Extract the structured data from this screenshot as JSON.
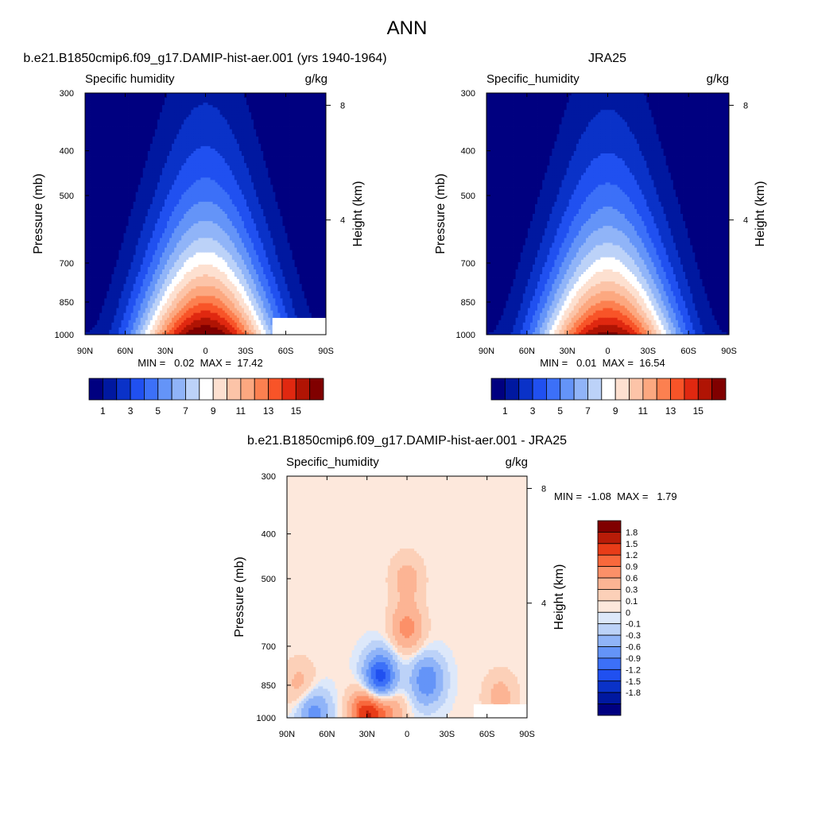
{
  "figure": {
    "title": "ANN"
  },
  "colors": {
    "moisture_scale": [
      "#000080",
      "#0018a0",
      "#0a32c8",
      "#2050f0",
      "#3c70f8",
      "#6494f8",
      "#90b4f8",
      "#bcd2f8",
      "#ffffff",
      "#fde0d0",
      "#fcc4a8",
      "#fca880",
      "#fc8050",
      "#f85428",
      "#e02810",
      "#b01404",
      "#800000"
    ],
    "difference_scale": [
      "#000080",
      "#0018a0",
      "#0a32c8",
      "#2050f0",
      "#3c70f8",
      "#6494f8",
      "#90b4f8",
      "#bcd2f8",
      "#dde8fa",
      "#fde8dc",
      "#fcd0b8",
      "#fcb494",
      "#fc9068",
      "#f8683c",
      "#e83c18",
      "#b81c08",
      "#800000"
    ],
    "missing": "#ffffff"
  },
  "chart_data": [
    {
      "type": "heatmap",
      "title": "b.e21.B1850cmip6.f09_g17.DAMIP-hist-aer.001 (yrs 1940-1964)",
      "left_label": "Specific humidity",
      "right_label": "g/kg",
      "ylabel": "Pressure (mb)",
      "y2label": "Height (km)",
      "x_ticks": [
        "90N",
        "60N",
        "30N",
        "0",
        "30S",
        "60S",
        "90S"
      ],
      "x_tick_values": [
        90,
        60,
        30,
        0,
        -30,
        -60,
        -90
      ],
      "xlim": [
        90,
        -90
      ],
      "y_ticks": [
        "300",
        "400",
        "500",
        "700",
        "850",
        "1000"
      ],
      "y_tick_values": [
        300,
        400,
        500,
        700,
        850,
        1000
      ],
      "ylim": [
        1000,
        300
      ],
      "yscale": "log",
      "y2_ticks": [
        "8",
        "4"
      ],
      "y2_tick_values": [
        8,
        4
      ],
      "peak_value": 17.42,
      "peak_lat": 0,
      "min_value": 0.02,
      "stats": "MIN =   0.02  MAX =  17.42",
      "colorbar_levels": [
        1,
        2,
        3,
        4,
        5,
        6,
        7,
        8,
        9,
        10,
        11,
        12,
        13,
        14,
        15,
        16
      ],
      "colorbar_labels": [
        "1",
        "3",
        "5",
        "7",
        "9",
        "11",
        "13",
        "15"
      ],
      "missing_region": "surface below ~920 mb south of 50S"
    },
    {
      "type": "heatmap",
      "title": "JRA25",
      "left_label": "Specific_humidity",
      "right_label": "g/kg",
      "ylabel": "Pressure (mb)",
      "y2label": "Height (km)",
      "x_ticks": [
        "90N",
        "60N",
        "30N",
        "0",
        "30S",
        "60S",
        "90S"
      ],
      "x_tick_values": [
        90,
        60,
        30,
        0,
        -30,
        -60,
        -90
      ],
      "xlim": [
        90,
        -90
      ],
      "y_ticks": [
        "300",
        "400",
        "500",
        "700",
        "850",
        "1000"
      ],
      "y_tick_values": [
        300,
        400,
        500,
        700,
        850,
        1000
      ],
      "ylim": [
        1000,
        300
      ],
      "yscale": "log",
      "y2_ticks": [
        "8",
        "4"
      ],
      "y2_tick_values": [
        8,
        4
      ],
      "peak_value": 16.54,
      "peak_lat": 0,
      "min_value": 0.01,
      "stats": "MIN =   0.01  MAX =  16.54",
      "colorbar_levels": [
        1,
        2,
        3,
        4,
        5,
        6,
        7,
        8,
        9,
        10,
        11,
        12,
        13,
        14,
        15,
        16
      ],
      "colorbar_labels": [
        "1",
        "3",
        "5",
        "7",
        "9",
        "11",
        "13",
        "15"
      ]
    },
    {
      "type": "heatmap",
      "title": "b.e21.B1850cmip6.f09_g17.DAMIP-hist-aer.001 - JRA25",
      "left_label": "Specific_humidity",
      "right_label": "g/kg",
      "ylabel": "Pressure (mb)",
      "y2label": "Height (km)",
      "x_ticks": [
        "90N",
        "60N",
        "30N",
        "0",
        "30S",
        "60S",
        "90S"
      ],
      "x_tick_values": [
        90,
        60,
        30,
        0,
        -30,
        -60,
        -90
      ],
      "xlim": [
        90,
        -90
      ],
      "y_ticks": [
        "300",
        "400",
        "500",
        "700",
        "850",
        "1000"
      ],
      "y_tick_values": [
        300,
        400,
        500,
        700,
        850,
        1000
      ],
      "ylim": [
        1000,
        300
      ],
      "yscale": "log",
      "y2_ticks": [
        "8",
        "4"
      ],
      "y2_tick_values": [
        8,
        4
      ],
      "min_value": -1.08,
      "max_value": 1.79,
      "stats": "MIN =  -1.08  MAX =   1.79",
      "colorbar_labels": [
        "1.8",
        "1.5",
        "1.2",
        "0.9",
        "0.6",
        "0.3",
        "0.1",
        "0",
        "-0.1",
        "-0.3",
        "-0.6",
        "-0.9",
        "-1.2",
        "-1.5",
        "-1.8"
      ],
      "colorbar_levels": [
        -1.8,
        -1.5,
        -1.2,
        -0.9,
        -0.6,
        -0.3,
        -0.1,
        0,
        0.1,
        0.3,
        0.6,
        0.9,
        1.2,
        1.5,
        1.8
      ],
      "features": [
        {
          "lat": 0,
          "p": 500,
          "value": 0.4
        },
        {
          "lat": 0,
          "p": 640,
          "value": 0.7
        },
        {
          "lat": 20,
          "p": 800,
          "value": -0.7
        },
        {
          "lat": 20,
          "p": 850,
          "value": -1.0
        },
        {
          "lat": -15,
          "p": 830,
          "value": -0.9
        },
        {
          "lat": 30,
          "p": 975,
          "value": 1.5
        },
        {
          "lat": 15,
          "p": 950,
          "value": 0.8
        },
        {
          "lat": 70,
          "p": 980,
          "value": -0.8
        },
        {
          "lat": -70,
          "p": 900,
          "value": 0.4
        },
        {
          "lat": 80,
          "p": 850,
          "value": 0.4
        }
      ]
    }
  ]
}
